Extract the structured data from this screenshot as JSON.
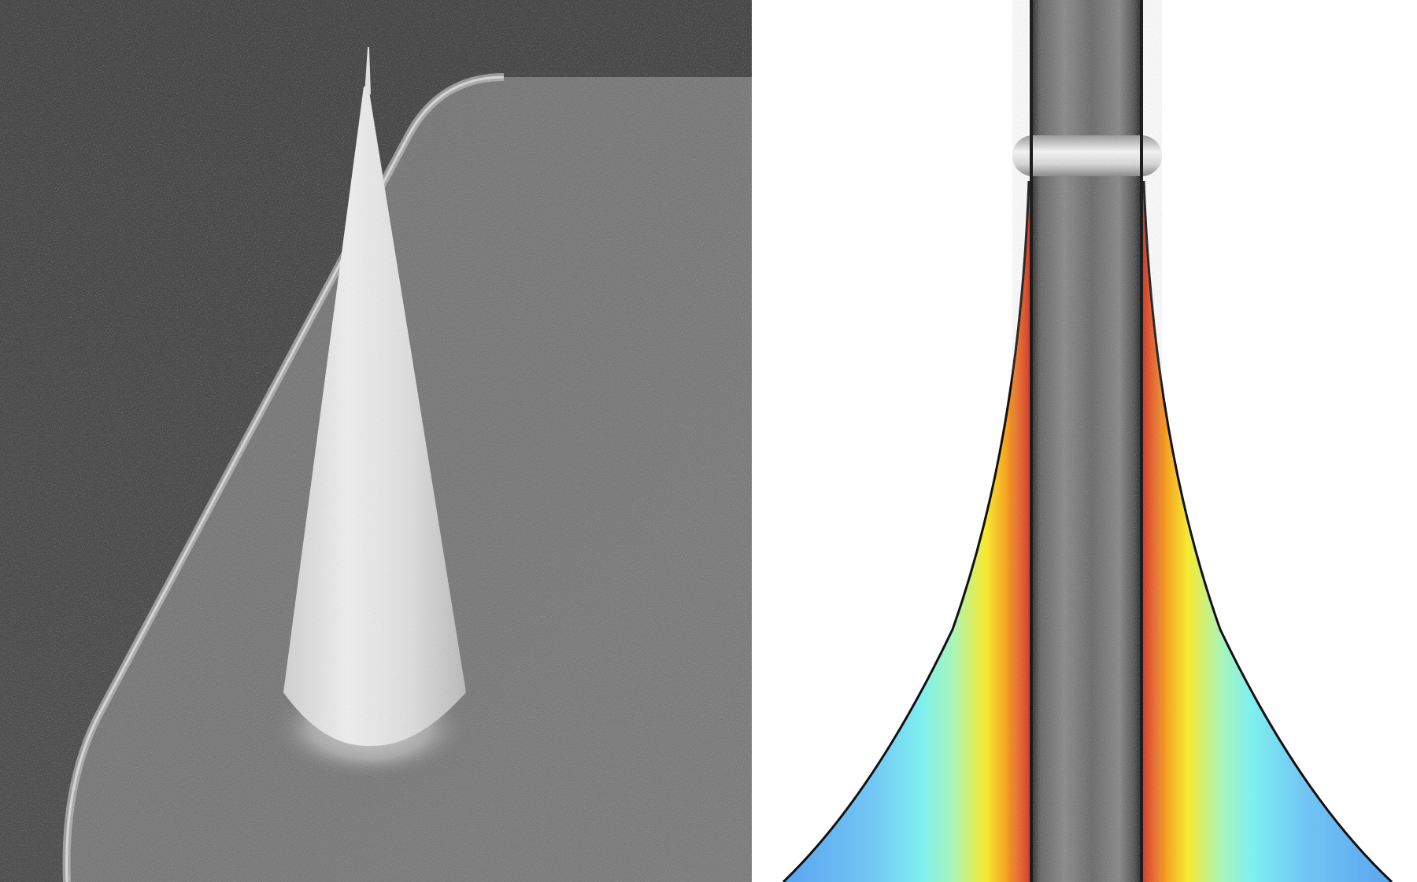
{
  "figure": {
    "panels": [
      {
        "id": "left",
        "content": "sem-micrograph",
        "subject": "conical-tip",
        "palette": {
          "background_dark": "#4a4a4a",
          "plateau": "#7a7a7a",
          "plateau_edge": "#bdbdbd",
          "cone_light": "#e6e6e6",
          "cone_mid": "#c8c8c8"
        }
      },
      {
        "id": "right",
        "content": "sem-with-simulation-overlay",
        "subject": "fiber-with-meniscus",
        "palette": {
          "background": "#ffffff",
          "fiber_dark": "#4f4f4f",
          "fiber_light": "#8c8c8c",
          "bead": "#e8e8e8",
          "heat_red": "#c0141a",
          "heat_orange": "#f39a1e",
          "heat_yellow": "#f6ea33",
          "heat_cyan": "#7ef4ee",
          "heat_blue": "#66b2f1",
          "outline": "#111111"
        }
      }
    ]
  }
}
